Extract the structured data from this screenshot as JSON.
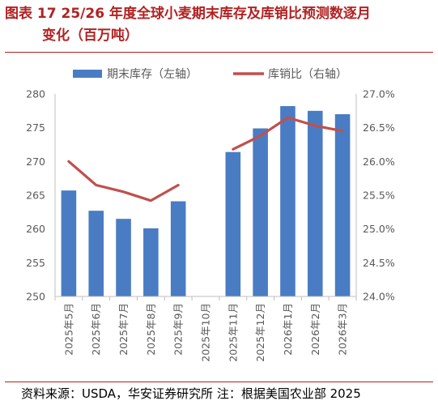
{
  "title": {
    "line1": "图表 17 25/26 年度全球小麦期末库存及库销比预测数逐月",
    "line2": "变化（百万吨）"
  },
  "source": "资料来源：USDA，华安证券研究所 注：根据美国农业部 2025",
  "colors": {
    "bar": "#4a7cc4",
    "line": "#c0504d",
    "title": "#b22222",
    "axis_text": "#595959"
  },
  "chart_data": {
    "type": "bar",
    "categories": [
      "2025年5月",
      "2025年6月",
      "2025年7月",
      "2025年8月",
      "2025年9月",
      "2025年10月",
      "2025年11月",
      "2025年12月",
      "2026年1月",
      "2026年2月",
      "2026年3月"
    ],
    "series": [
      {
        "name": "期末库存（左轴）",
        "type": "bar",
        "axis": "left",
        "values": [
          265.7,
          262.7,
          261.5,
          260.1,
          264.1,
          null,
          271.4,
          274.9,
          278.2,
          277.5,
          277.0
        ]
      },
      {
        "name": "库销比（右轴）",
        "type": "line",
        "axis": "right",
        "values": [
          26.0,
          25.65,
          25.55,
          25.42,
          25.65,
          null,
          26.18,
          26.38,
          26.65,
          26.53,
          26.45
        ]
      }
    ],
    "y_left": {
      "min": 250,
      "max": 280,
      "step": 5,
      "ticks": [
        "250",
        "255",
        "260",
        "265",
        "270",
        "275",
        "280"
      ]
    },
    "y_right": {
      "min": 24.0,
      "max": 27.0,
      "step": 0.5,
      "ticks": [
        "24.0%",
        "24.5%",
        "25.0%",
        "25.5%",
        "26.0%",
        "26.5%",
        "27.0%"
      ]
    },
    "legend_position": "top",
    "grid": false
  }
}
